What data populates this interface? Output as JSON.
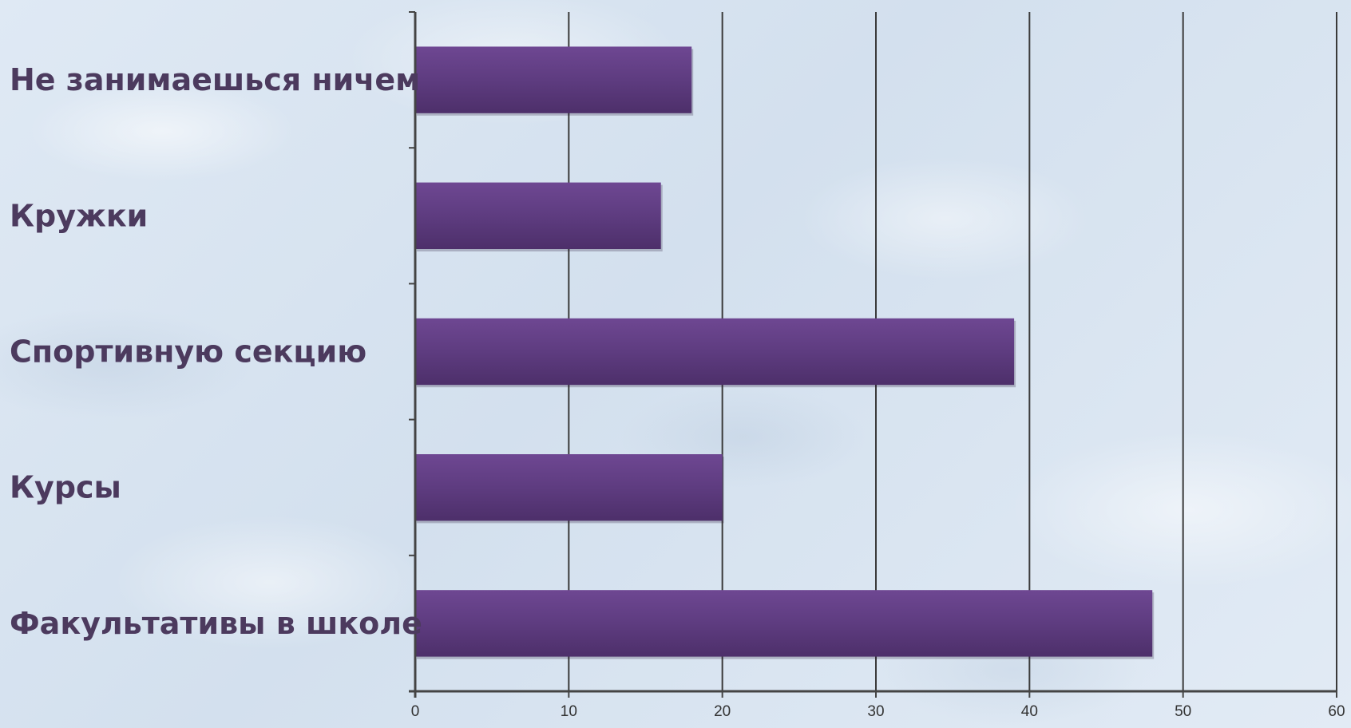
{
  "chart_data": {
    "type": "bar",
    "orientation": "horizontal",
    "categories": [
      "Не занимаешься ничем",
      "Кружки",
      "Спортивную секцию",
      "Курсы",
      "Факультативы в школе"
    ],
    "values": [
      18,
      16,
      39,
      20,
      48
    ],
    "xlim": [
      0,
      60
    ],
    "x_ticks": [
      "0",
      "10",
      "20",
      "30",
      "40",
      "50",
      "60"
    ],
    "grid": "vertical",
    "legend": "none",
    "title": "",
    "xlabel": "",
    "ylabel": "",
    "colors": {
      "bar_top": "#6e4792",
      "bar_bottom": "#4d2f6a",
      "grid": "#3a3a3a",
      "axis": "#444444",
      "label": "#4c3a5e"
    }
  }
}
